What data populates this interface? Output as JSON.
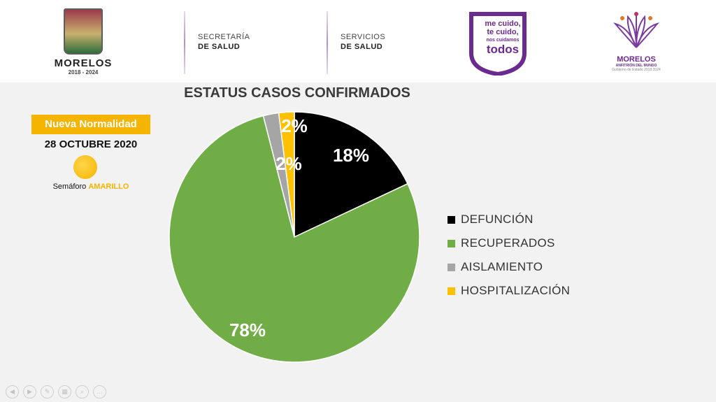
{
  "header": {
    "state_logo": {
      "name": "MORELOS",
      "years": "2018 - 2024"
    },
    "agency1": {
      "line1": "SECRETARÍA",
      "line2": "DE SALUD"
    },
    "agency2": {
      "line1": "SERVICIOS",
      "line2": "DE SALUD"
    },
    "campaign": {
      "line1": "me cuido,",
      "line2": "te cuido,",
      "line3": "nos cuidamos",
      "line4": "todos"
    },
    "gov_logo": {
      "title": "MORELOS",
      "subtitle": "ANFITRIÓN DEL MUNDO",
      "caption": "Gobierno de Estado 2018 2024"
    }
  },
  "status_panel": {
    "badge": "Nueva Normalidad",
    "date": "28 OCTUBRE 2020",
    "semaforo_label": "Semáforo ",
    "semaforo_level": "AMARILLO"
  },
  "chart_data": {
    "type": "pie",
    "title": "ESTATUS CASOS CONFIRMADOS",
    "categories": [
      "DEFUNCIÓN",
      "RECUPERADOS",
      "AISLAMIENTO",
      "HOSPITALIZACIÓN"
    ],
    "values": [
      18,
      78,
      2,
      2
    ],
    "labels": [
      "18%",
      "78%",
      "2%",
      "2%"
    ],
    "colors": [
      "#000000",
      "#70ad47",
      "#a5a5a5",
      "#ffc000"
    ],
    "legend_position": "right"
  },
  "controls": [
    "prev",
    "next",
    "pen",
    "slides",
    "zoom",
    "more"
  ]
}
